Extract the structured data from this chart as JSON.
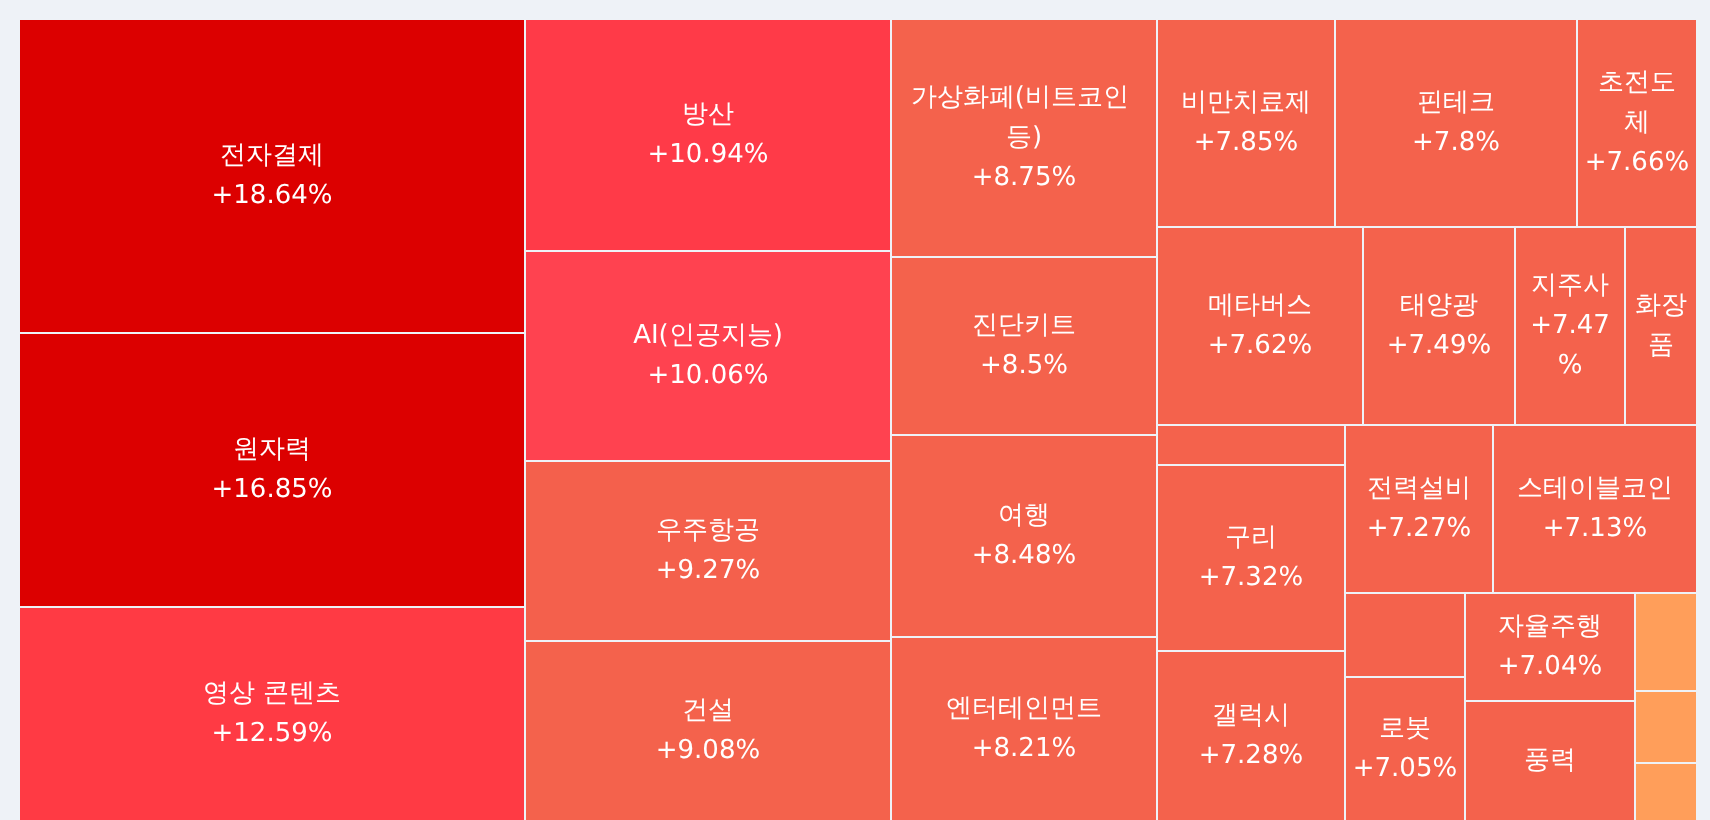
{
  "chart_data": {
    "type": "other",
    "categories": [
      "전자결제",
      "원자력",
      "영상 콘텐츠",
      "방산",
      "AI(인공지능)",
      "우주항공",
      "건설",
      "가상화폐(비트코인 등)",
      "진단키트",
      "여행",
      "엔터테인먼트",
      "비만치료제",
      "핀테크",
      "초전도체",
      "메타버스",
      "태양광",
      "지주사",
      "화장품",
      null,
      "구리",
      "갤럭시",
      "전력설비",
      "스테이블코인",
      null,
      "로봇",
      "자율주행",
      "풍력",
      null,
      null,
      null
    ],
    "values": [
      18.64,
      16.85,
      12.59,
      10.94,
      10.06,
      9.27,
      9.08,
      8.75,
      8.5,
      8.48,
      8.21,
      7.85,
      7.8,
      7.66,
      7.62,
      7.49,
      7.47,
      null,
      null,
      7.32,
      7.28,
      7.27,
      7.13,
      null,
      7.05,
      7.04,
      null,
      null,
      null,
      null
    ],
    "value_labels": [
      "+18.64%",
      "+16.85%",
      "+12.59%",
      "+10.94%",
      "+10.06%",
      "+9.27%",
      "+9.08%",
      "+8.75%",
      "+8.5%",
      "+8.48%",
      "+8.21%",
      "+7.85%",
      "+7.8%",
      "+7.66%",
      "+7.62%",
      "+7.49%",
      "+7.47%",
      null,
      null,
      "+7.32%",
      "+7.28%",
      "+7.27%",
      "+7.13%",
      null,
      "+7.05%",
      "+7.04%",
      null,
      null,
      null,
      null
    ],
    "colors": [
      "#dc0000",
      "#dc0000",
      "#ff3a44",
      "#ff3a48",
      "#ff4250",
      "#f4604c",
      "#f4624c",
      "#f4624c",
      "#f4624c",
      "#f4624c",
      "#f4624c",
      "#f4624c",
      "#f4624c",
      "#f4624c",
      "#f4624c",
      "#f4624c",
      "#f4624c",
      "#f4624c",
      "#f4624c",
      "#f4624c",
      "#f4624c",
      "#f4624c",
      "#f4624c",
      "#f4624c",
      "#f4624c",
      "#f4624c",
      "#f4624c",
      "#ff9e5a",
      "#ff9e5a",
      "#ff9e5a"
    ]
  }
}
